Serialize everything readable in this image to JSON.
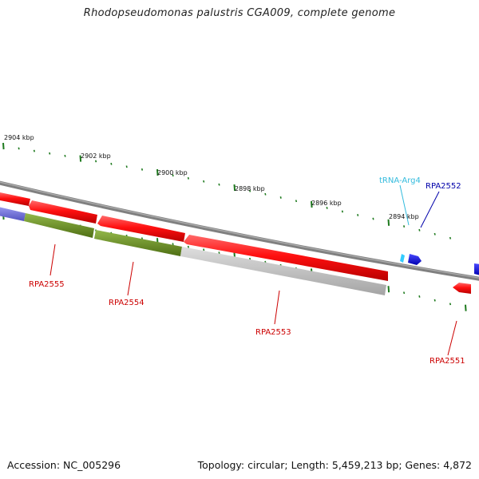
{
  "title": "Rhodopseudomonas palustris CGA009, complete genome",
  "footer": {
    "accession": "Accession: NC_005296",
    "summary": "Topology: circular; Length: 5,459,213 bp; Genes: 4,872"
  },
  "scale_labels": [
    "2904 kbp",
    "2902 kbp",
    "2900 kbp",
    "2898 kbp",
    "2896 kbp",
    "2894 kbp"
  ],
  "genes": [
    {
      "label": "RPA2555",
      "color": "#cc0000"
    },
    {
      "label": "RPA2554",
      "color": "#cc0000"
    },
    {
      "label": "RPA2553",
      "color": "#cc0000"
    },
    {
      "label": "RPA2551",
      "color": "#cc0000"
    },
    {
      "label": "tRNA-Arg4",
      "color": "#33bbdd"
    },
    {
      "label": "RPA2552",
      "color": "#0000aa"
    }
  ],
  "colors": {
    "cds": "#ff1a1a",
    "backbone": "#8a8a8a",
    "tick": "#1e7a1e",
    "cog_green": "#6b8e23",
    "cog_gray": "#b8b8b8",
    "cog_purple": "#7070dd",
    "trna": "#33ccff",
    "blue_gene": "#0000ee"
  }
}
